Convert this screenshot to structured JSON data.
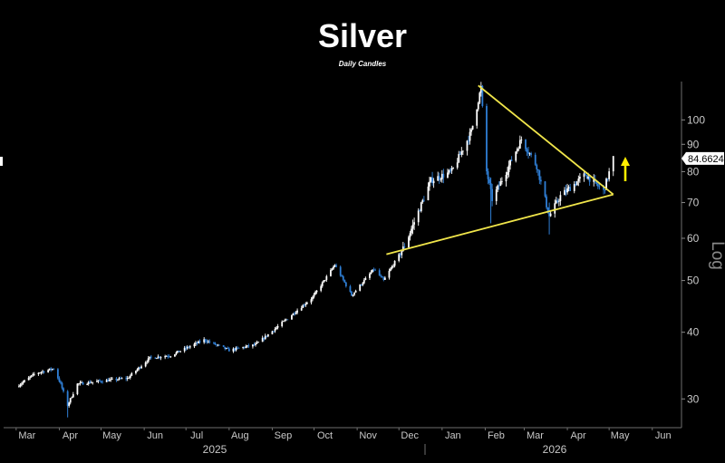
{
  "chart_data": {
    "type": "candlestick",
    "title": "Silver",
    "subtitle": "Daily Candles",
    "scale_label": "Log",
    "y_scale": "log",
    "ylim": [
      26.5,
      118
    ],
    "y_ticks": [
      30,
      40,
      50,
      60,
      70,
      80,
      90,
      100
    ],
    "x_ticks": [
      "Mar",
      "Apr",
      "May",
      "Jun",
      "Jul",
      "Aug",
      "Sep",
      "Oct",
      "Nov",
      "Dec",
      "Jan",
      "Feb",
      "Mar",
      "Apr",
      "May",
      "Jun"
    ],
    "years": [
      "2025",
      "2026"
    ],
    "last_price": "84.6624",
    "grid": false,
    "up_color": "#ffffff",
    "down_color": "#2f7fd6",
    "trendline_color": "#f0e54a",
    "arrow_color": "#ffee00",
    "price_path": [
      [
        "2025-03-01",
        31.6
      ],
      [
        "2025-03-15",
        33.5
      ],
      [
        "2025-03-28",
        34.2
      ],
      [
        "2025-04-02",
        32.0
      ],
      [
        "2025-04-07",
        29.2
      ],
      [
        "2025-04-14",
        32.0
      ],
      [
        "2025-05-01",
        32.4
      ],
      [
        "2025-05-20",
        32.8
      ],
      [
        "2025-06-05",
        35.8
      ],
      [
        "2025-06-20",
        36.2
      ],
      [
        "2025-07-14",
        38.7
      ],
      [
        "2025-08-01",
        37.0
      ],
      [
        "2025-08-20",
        37.9
      ],
      [
        "2025-09-05",
        41.0
      ],
      [
        "2025-09-30",
        46.5
      ],
      [
        "2025-10-16",
        53.5
      ],
      [
        "2025-10-28",
        46.9
      ],
      [
        "2025-11-13",
        52.5
      ],
      [
        "2025-11-20",
        50.0
      ],
      [
        "2025-12-05",
        58.0
      ],
      [
        "2025-12-24",
        77.0
      ],
      [
        "2026-01-08",
        80.0
      ],
      [
        "2026-01-22",
        95.0
      ],
      [
        "2026-01-29",
        115.0
      ],
      [
        "2026-02-02",
        80.0
      ],
      [
        "2026-02-06",
        71.0
      ],
      [
        "2026-02-16",
        80.0
      ],
      [
        "2026-02-27",
        92.0
      ],
      [
        "2026-03-10",
        82.0
      ],
      [
        "2026-03-19",
        66.0
      ],
      [
        "2026-03-27",
        72.0
      ],
      [
        "2026-04-14",
        79.0
      ],
      [
        "2026-04-27",
        73.5
      ],
      [
        "2026-05-04",
        84.66
      ]
    ],
    "trendline_upper": [
      [
        "2026-01-27",
        116.0
      ],
      [
        "2026-05-04",
        72.5
      ]
    ],
    "trendline_lower": [
      [
        "2025-11-22",
        56.0
      ],
      [
        "2026-05-04",
        72.5
      ]
    ]
  }
}
